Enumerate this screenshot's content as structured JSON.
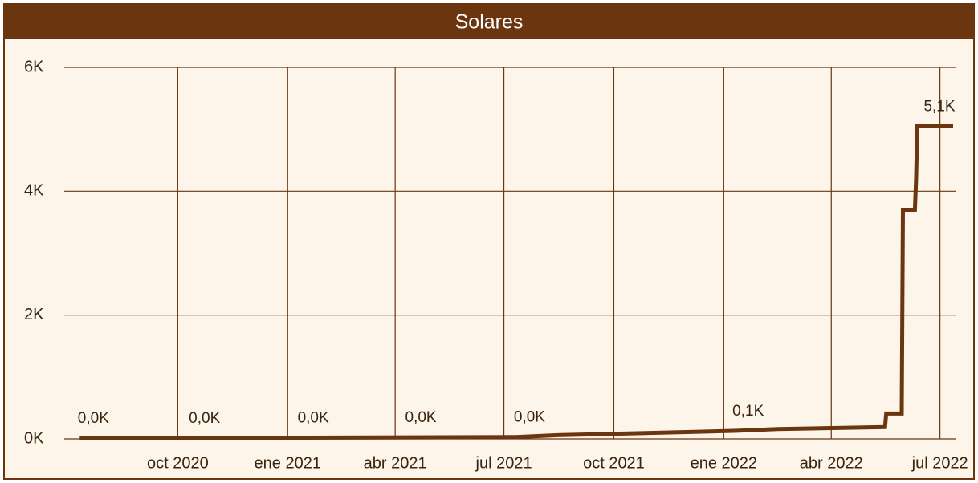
{
  "chart_data": {
    "type": "line",
    "title": "Solares",
    "x": [
      "2020-07-11",
      "2020-10-12",
      "2021-01-11",
      "2021-04-11",
      "2021-07-11",
      "2021-08-15",
      "2021-12-01",
      "2022-01-10",
      "2022-02-15",
      "2022-05-16",
      "2022-05-17",
      "2022-05-30",
      "2022-05-31",
      "2022-06-10",
      "2022-06-11",
      "2022-06-12",
      "2022-07-12"
    ],
    "series": [
      {
        "color": "#6b3510",
        "values": [
          10,
          15,
          20,
          25,
          30,
          60,
          110,
          130,
          160,
          190,
          410,
          410,
          3700,
          3700,
          4200,
          5050,
          5050
        ],
        "value_labels": [
          "0,0K",
          "0,0K",
          "0,0K",
          "0,0K",
          "0,0K",
          null,
          null,
          "0,1K",
          null,
          null,
          null,
          null,
          null,
          null,
          null,
          null,
          "5,1K"
        ]
      }
    ],
    "xlim": [
      "2020-06-28",
      "2022-07-14"
    ],
    "xticks": [
      {
        "value": "2020-10-01",
        "label": "oct 2020"
      },
      {
        "value": "2021-01-01",
        "label": "ene 2021"
      },
      {
        "value": "2021-04-01",
        "label": "abr 2021"
      },
      {
        "value": "2021-07-01",
        "label": "jul 2021"
      },
      {
        "value": "2021-10-01",
        "label": "oct 2021"
      },
      {
        "value": "2022-01-01",
        "label": "ene 2022"
      },
      {
        "value": "2022-04-01",
        "label": "abr 2022"
      },
      {
        "value": "2022-07-01",
        "label": "jul 2022"
      }
    ],
    "ylim": [
      0,
      6000
    ],
    "yticks": [
      {
        "value": 0,
        "label": "0K"
      },
      {
        "value": 2000,
        "label": "2K"
      },
      {
        "value": 4000,
        "label": "4K"
      },
      {
        "value": 6000,
        "label": "6K"
      }
    ],
    "grid": true
  }
}
